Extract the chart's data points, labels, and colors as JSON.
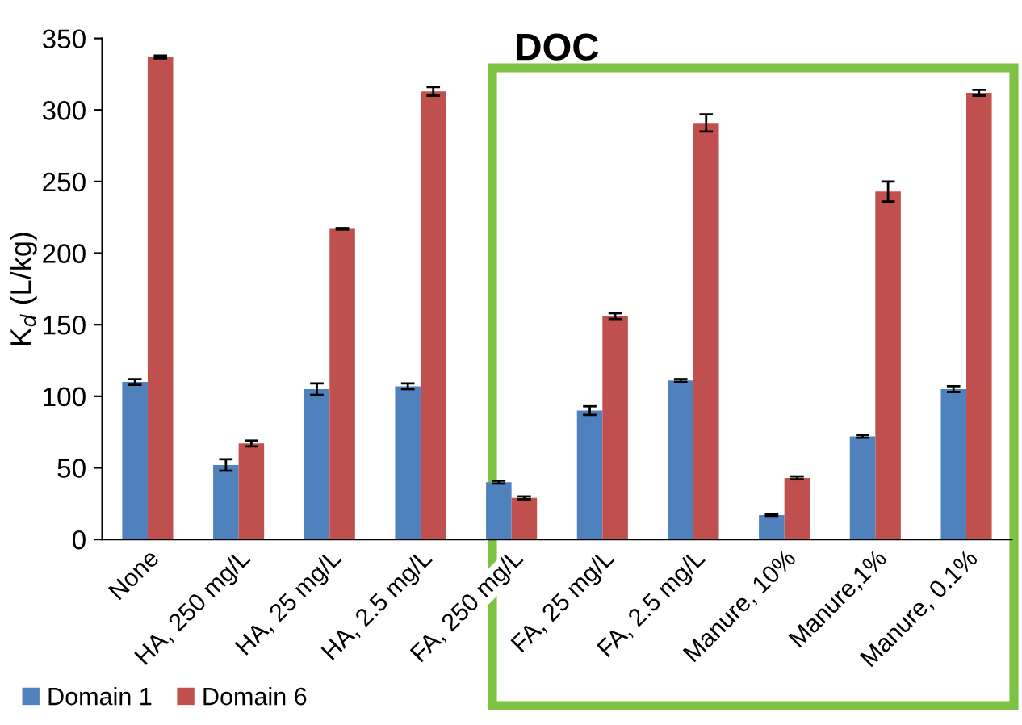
{
  "chart_data": {
    "type": "bar",
    "title": "DOC",
    "ylabel": "K$_{d}$ (L/kg)",
    "categories": [
      "None",
      "HA, 250 mg/L",
      "HA, 25 mg/L",
      "HA, 2.5 mg/L",
      "FA, 250 mg/L",
      "FA, 25 mg/L",
      "FA, 2.5 mg/L",
      "Manure, 10%",
      "Manure,1%",
      "Manure, 0.1%"
    ],
    "series": [
      {
        "name": "Domain 1",
        "color": "#4f81bd",
        "values": [
          110,
          52,
          105,
          107,
          40,
          90,
          111,
          17,
          72,
          105
        ],
        "errors": [
          2,
          4,
          4,
          2,
          1,
          3,
          1,
          0.5,
          1,
          2
        ]
      },
      {
        "name": "Domain 6",
        "color": "#c0504d",
        "values": [
          337,
          67,
          217,
          313,
          29,
          156,
          291,
          43,
          243,
          312
        ],
        "errors": [
          1,
          2,
          0.5,
          3,
          1,
          2,
          6,
          1,
          7,
          2
        ]
      }
    ],
    "ylim": [
      0,
      350
    ],
    "yticks": [
      0,
      50,
      100,
      150,
      200,
      250,
      300,
      350
    ],
    "grid": false,
    "legend": "bottom left"
  }
}
